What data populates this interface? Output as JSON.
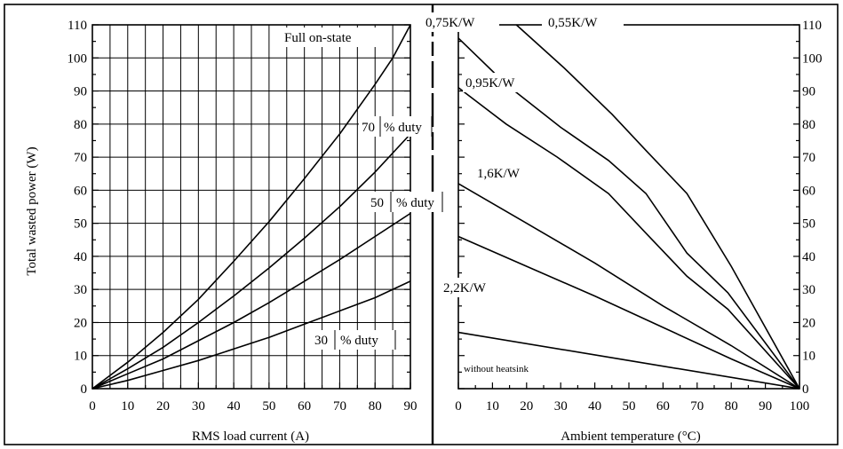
{
  "chart_data": [
    {
      "type": "line",
      "xlabel": "RMS load current (A)",
      "ylabel": "Total wasted power (W)",
      "xlim": [
        0,
        90
      ],
      "ylim": [
        0,
        110
      ],
      "x_ticks": [
        "0",
        "10",
        "20",
        "30",
        "40",
        "50",
        "60",
        "70",
        "80",
        "90"
      ],
      "y_ticks": [
        "0",
        "10",
        "20",
        "30",
        "40",
        "50",
        "60",
        "70",
        "80",
        "90",
        "100",
        "110"
      ],
      "grid": true,
      "series": [
        {
          "name": "Full on-state",
          "x": [
            0,
            10,
            20,
            30,
            40,
            50,
            60,
            70,
            80,
            85,
            90
          ],
          "y": [
            0,
            8,
            17,
            27,
            38.5,
            50.5,
            63.5,
            77,
            92,
            100,
            110
          ]
        },
        {
          "name": "70 % duty",
          "x": [
            0,
            10,
            20,
            30,
            40,
            50,
            60,
            70,
            80,
            90
          ],
          "y": [
            0,
            6,
            12.5,
            20,
            28,
            36.5,
            45.5,
            55,
            65.5,
            77
          ]
        },
        {
          "name": "50 % duty",
          "x": [
            0,
            10,
            20,
            30,
            40,
            50,
            60,
            70,
            80,
            90
          ],
          "y": [
            0,
            4.5,
            9,
            14.5,
            20,
            26,
            32.5,
            39,
            46,
            53
          ]
        },
        {
          "name": "30 % duty",
          "x": [
            0,
            10,
            20,
            30,
            40,
            50,
            60,
            70,
            80,
            90
          ],
          "y": [
            0,
            2.5,
            5.5,
            8.5,
            12,
            15.5,
            19.5,
            23.5,
            27.5,
            32.5
          ]
        }
      ]
    },
    {
      "type": "line",
      "xlabel": "Ambient temperature (°C)",
      "ylabel": "",
      "xlim": [
        0,
        100
      ],
      "ylim": [
        0,
        110
      ],
      "x_ticks": [
        "0",
        "10",
        "20",
        "30",
        "40",
        "50",
        "60",
        "70",
        "80",
        "90",
        "100"
      ],
      "y_ticks": [
        "0",
        "10",
        "20",
        "30",
        "40",
        "50",
        "60",
        "70",
        "80",
        "90",
        "100",
        "110"
      ],
      "grid": false,
      "series": [
        {
          "name": "0,55K/W",
          "x": [
            17,
            31,
            45,
            55,
            67,
            80,
            100
          ],
          "y": [
            110,
            97,
            83,
            72,
            59,
            37,
            0
          ]
        },
        {
          "name": "0,75K/W",
          "x": [
            0,
            14,
            30,
            44,
            55,
            67,
            79,
            100
          ],
          "y": [
            106,
            92,
            79,
            69,
            59,
            41,
            29,
            0
          ]
        },
        {
          "name": "0,95K/W",
          "x": [
            0,
            14,
            29,
            44,
            55,
            67,
            79,
            100
          ],
          "y": [
            91,
            80,
            70,
            59,
            47,
            34,
            24,
            0
          ]
        },
        {
          "name": "1,6K/W",
          "x": [
            0,
            20,
            40,
            60,
            80,
            100
          ],
          "y": [
            62,
            50,
            38,
            25,
            13,
            0
          ]
        },
        {
          "name": "2,2K/W",
          "x": [
            0,
            20,
            40,
            60,
            80,
            100
          ],
          "y": [
            46,
            37,
            28,
            18.5,
            9,
            0
          ]
        },
        {
          "name": "without heatsink",
          "x": [
            0,
            50,
            100
          ],
          "y": [
            17,
            8.5,
            0
          ]
        }
      ]
    }
  ],
  "labels": {
    "full": "Full on-state",
    "d70_num": "70",
    "d70_txt": "% duty",
    "d50_num": "50",
    "d50_txt": "% duty",
    "d30_num": "30",
    "d30_txt": "% duty",
    "k075": "0,75K/W",
    "k055": "0,55K/W",
    "k095": "0,95K/W",
    "k16": "1,6K/W",
    "k22": "2,2K/W",
    "without": "without heatsink"
  }
}
